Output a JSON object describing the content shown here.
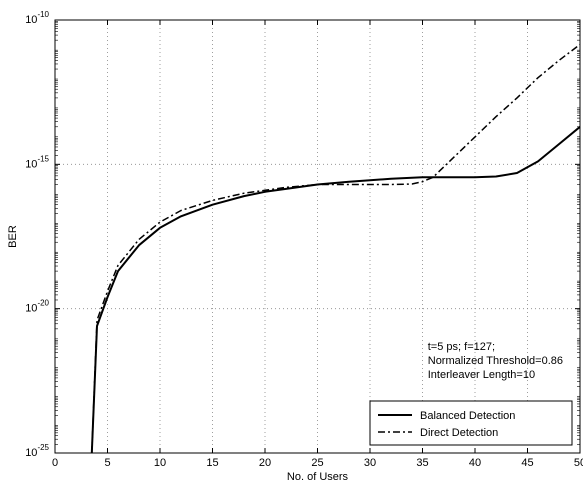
{
  "chart_data": {
    "type": "line",
    "xlabel": "No. of Users",
    "ylabel": "BER",
    "xlim": [
      0,
      50
    ],
    "ylim_exponent": [
      -25,
      -10
    ],
    "yscale": "log",
    "grid": true,
    "x_ticks": [
      "0",
      "5",
      "10",
      "15",
      "20",
      "25",
      "30",
      "35",
      "40",
      "45",
      "50"
    ],
    "y_ticks": [
      {
        "base": "10",
        "exp": "-10",
        "value": -10
      },
      {
        "base": "10",
        "exp": "-15",
        "value": -15
      },
      {
        "base": "10",
        "exp": "-20",
        "value": -20
      },
      {
        "base": "10",
        "exp": "-25",
        "value": -25
      }
    ],
    "annotation_lines": [
      "t=5 ps; f=127;",
      "Normalized Threshold=0.86",
      "Interleaver Length=10"
    ],
    "legend_position": "bottom-right",
    "series": [
      {
        "name": "Balanced Detection",
        "style": "solid",
        "x": [
          3.5,
          4,
          5,
          6,
          8,
          10,
          12,
          15,
          18,
          20,
          22,
          25,
          28,
          30,
          32,
          35,
          38,
          40,
          42,
          44,
          46,
          48,
          50
        ],
        "log10_y": [
          -25,
          -20.6,
          -19.6,
          -18.7,
          -17.8,
          -17.2,
          -16.8,
          -16.4,
          -16.1,
          -15.95,
          -15.85,
          -15.7,
          -15.6,
          -15.55,
          -15.5,
          -15.45,
          -15.45,
          -15.45,
          -15.42,
          -15.3,
          -14.9,
          -14.3,
          -13.7
        ]
      },
      {
        "name": "Direct Detection",
        "style": "dashdot",
        "x": [
          3.5,
          4,
          5,
          6,
          8,
          10,
          12,
          15,
          18,
          20,
          22,
          25,
          28,
          30,
          32,
          34,
          35,
          36,
          38,
          40,
          42,
          44,
          46,
          48,
          50
        ],
        "log10_y": [
          -25,
          -20.4,
          -19.4,
          -18.5,
          -17.6,
          -17.0,
          -16.6,
          -16.25,
          -16.0,
          -15.9,
          -15.8,
          -15.7,
          -15.7,
          -15.7,
          -15.7,
          -15.68,
          -15.6,
          -15.45,
          -14.75,
          -14.05,
          -13.35,
          -12.7,
          -12.0,
          -11.4,
          -10.85
        ]
      }
    ]
  }
}
